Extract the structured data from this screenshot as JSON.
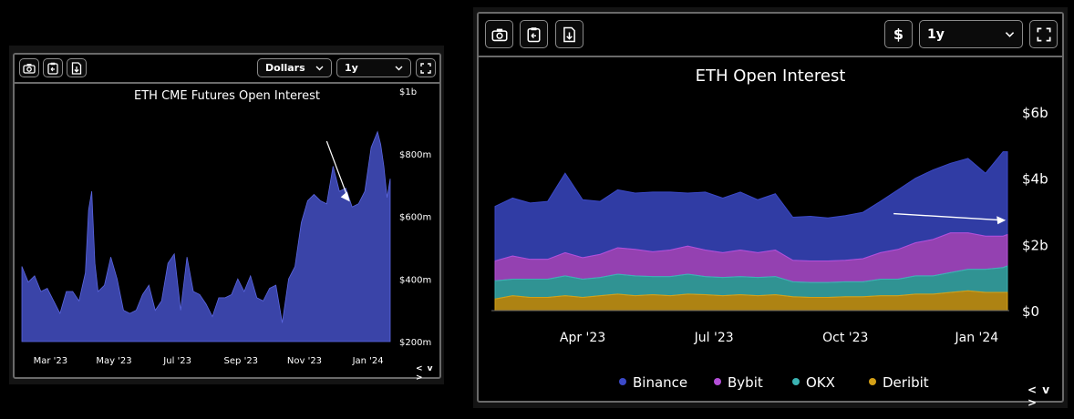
{
  "left": {
    "toolbar": {
      "currency_select": "Dollars",
      "range_select": "1y"
    },
    "nav": "< v >",
    "chart_data": {
      "type": "area",
      "title": "ETH CME Futures Open Interest",
      "y_ticks": [
        "$1b",
        "$800m",
        "$600m",
        "$400m",
        "$200m"
      ],
      "y_tick_values": [
        1000,
        800,
        600,
        400,
        200
      ],
      "ylim": [
        200,
        1000
      ],
      "x_ticks": [
        "Mar '23",
        "May '23",
        "Jul '23",
        "Sep '23",
        "Nov '23",
        "Jan '24"
      ],
      "x_tick_values": [
        1.0,
        3.0,
        5.0,
        7.0,
        9.0,
        11.0
      ],
      "xlim": [
        0.1,
        11.7
      ],
      "series": [
        {
          "color": "#3a44a8",
          "x": [
            0.1,
            0.3,
            0.5,
            0.7,
            0.9,
            1.1,
            1.3,
            1.5,
            1.7,
            1.9,
            2.1,
            2.2,
            2.3,
            2.4,
            2.5,
            2.7,
            2.9,
            3.1,
            3.3,
            3.5,
            3.7,
            3.9,
            4.1,
            4.3,
            4.5,
            4.7,
            4.9,
            5.1,
            5.3,
            5.5,
            5.7,
            5.9,
            6.1,
            6.3,
            6.5,
            6.7,
            6.9,
            7.1,
            7.3,
            7.5,
            7.7,
            7.9,
            8.1,
            8.3,
            8.5,
            8.7,
            8.9,
            9.1,
            9.3,
            9.5,
            9.7,
            9.9,
            10.1,
            10.3,
            10.5,
            10.7,
            10.9,
            11.1,
            11.3,
            11.4,
            11.5,
            11.6,
            11.7
          ],
          "values": [
            440,
            390,
            410,
            360,
            370,
            330,
            290,
            360,
            360,
            330,
            420,
            620,
            680,
            450,
            360,
            380,
            470,
            400,
            300,
            290,
            300,
            350,
            380,
            300,
            330,
            450,
            480,
            300,
            470,
            360,
            350,
            320,
            280,
            340,
            340,
            350,
            400,
            360,
            410,
            340,
            330,
            370,
            380,
            260,
            400,
            440,
            580,
            650,
            670,
            650,
            640,
            760,
            680,
            690,
            630,
            640,
            680,
            820,
            870,
            830,
            760,
            660,
            720
          ]
        }
      ]
    }
  },
  "right": {
    "toolbar": {
      "currency_icon": "$",
      "range_select": "1y"
    },
    "nav": "< v >",
    "chart_data": {
      "type": "area",
      "title": "ETH Open Interest",
      "y_ticks": [
        "$6b",
        "$4b",
        "$2b",
        "$0"
      ],
      "y_tick_values": [
        6,
        4,
        2,
        0
      ],
      "ylim": [
        0,
        6
      ],
      "x_ticks": [
        "Apr '23",
        "Jul '23",
        "Oct '23",
        "Jan '24"
      ],
      "x_tick_values": [
        3.0,
        6.0,
        9.0,
        12.0
      ],
      "xlim": [
        1.0,
        12.7
      ],
      "x": [
        1.0,
        1.4,
        1.8,
        2.2,
        2.6,
        3.0,
        3.4,
        3.8,
        4.2,
        4.6,
        5.0,
        5.4,
        5.8,
        6.2,
        6.6,
        7.0,
        7.4,
        7.8,
        8.2,
        8.6,
        9.0,
        9.4,
        9.8,
        10.2,
        10.6,
        11.0,
        11.4,
        11.8,
        12.2,
        12.6,
        12.7
      ],
      "series": [
        {
          "name": "Deribit",
          "color": "#d4a017",
          "values": [
            0.35,
            0.45,
            0.4,
            0.4,
            0.45,
            0.4,
            0.45,
            0.5,
            0.45,
            0.48,
            0.45,
            0.5,
            0.48,
            0.45,
            0.48,
            0.45,
            0.48,
            0.42,
            0.4,
            0.4,
            0.42,
            0.42,
            0.45,
            0.45,
            0.5,
            0.5,
            0.55,
            0.6,
            0.55,
            0.55,
            0.55
          ]
        },
        {
          "name": "OKX",
          "color": "#3bb3b3",
          "values": [
            0.55,
            0.5,
            0.55,
            0.55,
            0.6,
            0.55,
            0.55,
            0.6,
            0.6,
            0.55,
            0.58,
            0.6,
            0.55,
            0.55,
            0.55,
            0.55,
            0.55,
            0.45,
            0.45,
            0.45,
            0.45,
            0.45,
            0.5,
            0.5,
            0.55,
            0.55,
            0.6,
            0.65,
            0.7,
            0.75,
            0.8
          ]
        },
        {
          "name": "Bybit",
          "color": "#b44fd8",
          "values": [
            0.6,
            0.7,
            0.6,
            0.6,
            0.7,
            0.65,
            0.7,
            0.8,
            0.8,
            0.75,
            0.8,
            0.85,
            0.8,
            0.75,
            0.8,
            0.75,
            0.8,
            0.65,
            0.65,
            0.65,
            0.65,
            0.7,
            0.8,
            0.9,
            1.0,
            1.1,
            1.2,
            1.1,
            1.0,
            0.95,
            0.95
          ]
        },
        {
          "name": "Binance",
          "color": "#3b49c8",
          "values": [
            1.65,
            1.75,
            1.7,
            1.75,
            2.4,
            1.75,
            1.6,
            1.75,
            1.7,
            1.8,
            1.75,
            1.6,
            1.75,
            1.65,
            1.75,
            1.6,
            1.7,
            1.3,
            1.35,
            1.3,
            1.35,
            1.4,
            1.55,
            1.8,
            1.95,
            2.1,
            2.1,
            2.25,
            1.9,
            2.55,
            2.5
          ]
        }
      ],
      "legend_position": "bottom"
    }
  }
}
